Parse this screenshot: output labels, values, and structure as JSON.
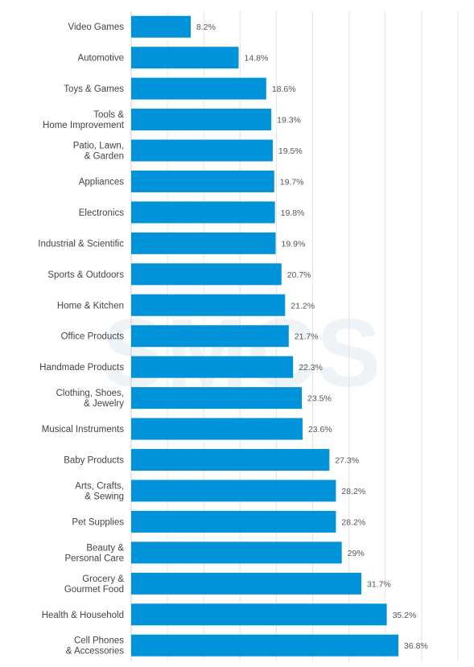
{
  "chart_data": {
    "type": "bar",
    "orientation": "horizontal",
    "title": "",
    "xlabel": "",
    "ylabel": "",
    "xlim": [
      0,
      45
    ],
    "grid": true,
    "bar_color": "#0093d9",
    "watermark": "SMCS",
    "categories": [
      "Video Games",
      "Automotive",
      "Toys & Games",
      "Tools &\nHome Improvement",
      "Patio, Lawn,\n& Garden",
      "Appliances",
      "Electronics",
      "Industrial & Scientific",
      "Sports & Outdoors",
      "Home & Kitchen",
      "Office Products",
      "Handmade Products",
      "Clothing, Shoes,\n& Jewelry",
      "Musical Instruments",
      "Baby Products",
      "Arts, Crafts,\n& Sewing",
      "Pet Supplies",
      "Beauty &\nPersonal Care",
      "Grocery &\nGourmet Food",
      "Health & Household",
      "Cell Phones\n& Accessories"
    ],
    "values": [
      8.2,
      14.8,
      18.6,
      19.3,
      19.5,
      19.7,
      19.8,
      19.9,
      20.7,
      21.2,
      21.7,
      22.3,
      23.5,
      23.6,
      27.3,
      28.2,
      28.2,
      29,
      31.7,
      35.2,
      36.8
    ],
    "value_labels": [
      "8.2%",
      "14.8%",
      "18.6%",
      "19.3%",
      "19.5%",
      "19.7%",
      "19.8%",
      "19.9%",
      "20.7%",
      "21.2%",
      "21.7%",
      "22.3%",
      "23.5%",
      "23.6%",
      "27.3%",
      "28.2%",
      "28.2%",
      "29%",
      "31.7%",
      "35.2%",
      "36.8%"
    ]
  }
}
